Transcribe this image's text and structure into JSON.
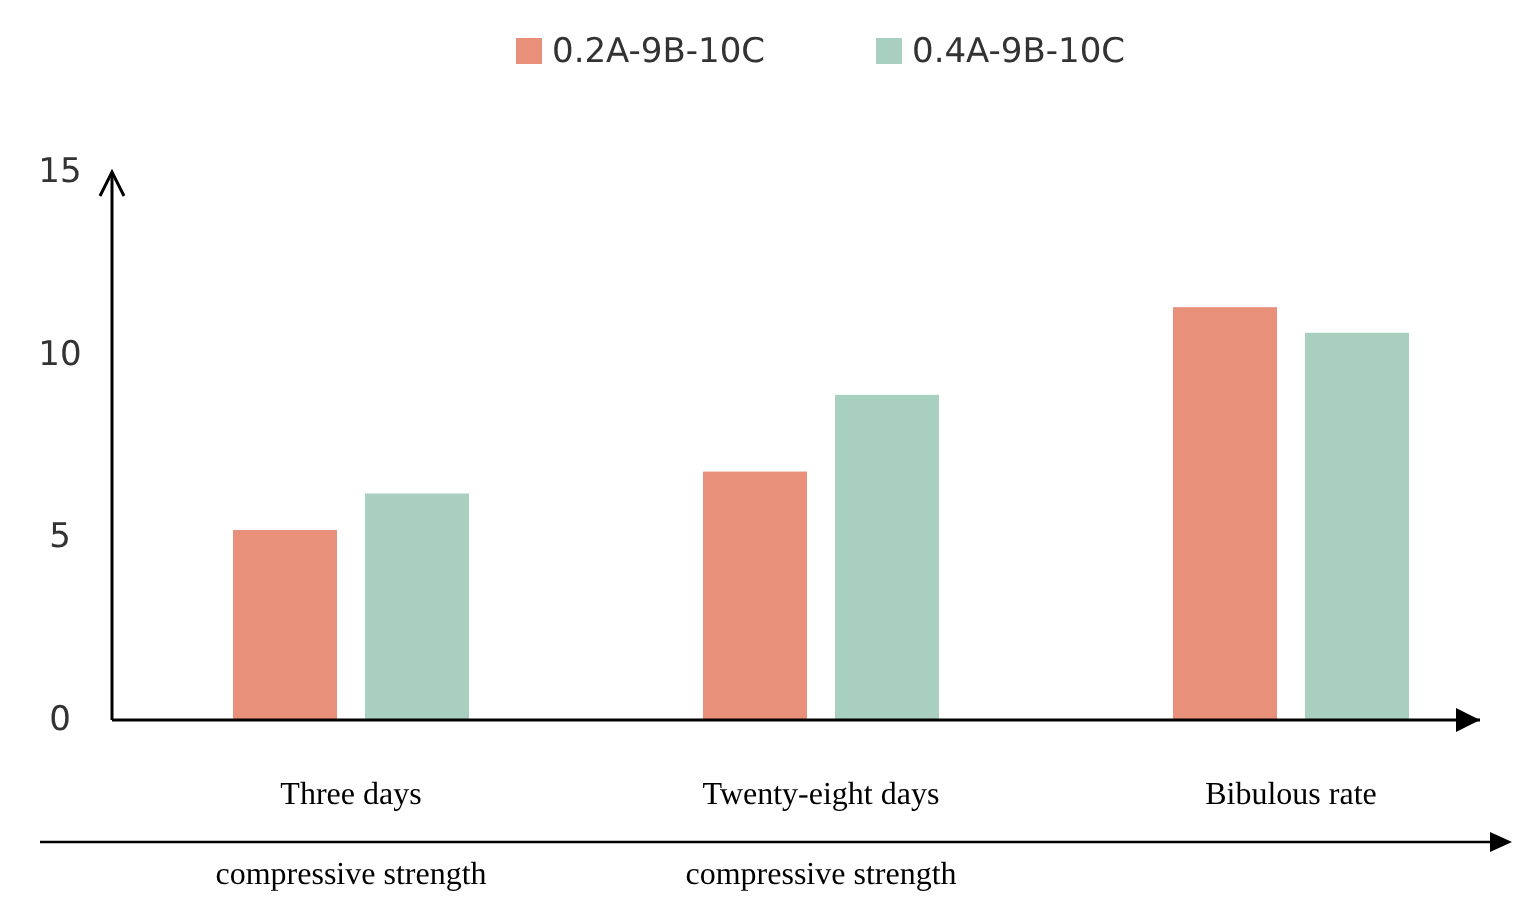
{
  "chart_data": {
    "type": "bar",
    "categories": [
      "Three days\ncompressive strength",
      "Twenty-eight days\ncompressive strength",
      "Bibulous rate"
    ],
    "series": [
      {
        "name": "0.2A-9B-10C",
        "color": "#e8907a",
        "values": [
          5.2,
          6.8,
          11.3
        ]
      },
      {
        "name": "0.4A-9B-10C",
        "color": "#a9cfc0",
        "values": [
          6.2,
          8.9,
          10.6
        ]
      }
    ],
    "ylim": [
      0,
      15
    ],
    "yticks": [
      0,
      5,
      10,
      15
    ],
    "grid": false,
    "legend": "top"
  }
}
